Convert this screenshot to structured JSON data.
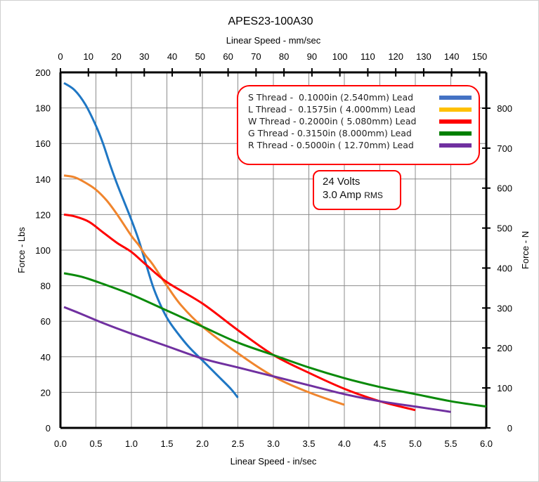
{
  "chart_data": {
    "type": "line",
    "title": "APES23-100A30",
    "xlabel": "Linear Speed - in/sec",
    "x2label": "Linear Speed - mm/sec",
    "ylabel": "Force - Lbs",
    "y2label": "Force - N",
    "xlim": [
      0,
      6.0
    ],
    "ylim": [
      0,
      200
    ],
    "x2lim": [
      0,
      152.4
    ],
    "y2lim": [
      0,
      889.6
    ],
    "xticks": [
      "0.0",
      "0.5",
      "1.0",
      "1.5",
      "2.0",
      "2.5",
      "3.0",
      "3.5",
      "4.0",
      "4.5",
      "5.0",
      "5.5",
      "6.0"
    ],
    "yticks": [
      "0",
      "20",
      "40",
      "60",
      "80",
      "100",
      "120",
      "140",
      "160",
      "180",
      "200"
    ],
    "x2ticks": [
      "0",
      "10",
      "20",
      "30",
      "40",
      "50",
      "60",
      "70",
      "80",
      "90",
      "100",
      "110",
      "120",
      "130",
      "140",
      "150"
    ],
    "y2ticks": [
      "0",
      "100",
      "200",
      "300",
      "400",
      "500",
      "600",
      "700",
      "800"
    ],
    "grid": true,
    "legend_position": "top-right",
    "series": [
      {
        "name": "S Thread -  0.1000in (2.540mm) Lead",
        "color": "#1f77c4",
        "x": [
          0.05,
          0.2,
          0.35,
          0.5,
          0.6,
          0.7,
          0.8,
          0.9,
          1.0,
          1.1,
          1.2,
          1.3,
          1.4,
          1.5,
          1.6,
          1.8,
          2.0,
          2.2,
          2.4,
          2.5
        ],
        "y": [
          194,
          190,
          182,
          170,
          160,
          148,
          137,
          127,
          117,
          106,
          93,
          80,
          70,
          62,
          56,
          46,
          38,
          30,
          22,
          17
        ]
      },
      {
        "name": "L Thread -  0.1575in ( 4.000mm) Lead",
        "color": "#f0852d",
        "x": [
          0.05,
          0.2,
          0.35,
          0.5,
          0.65,
          0.8,
          1.0,
          1.1,
          1.2,
          1.3,
          1.5,
          1.7,
          2.0,
          2.5,
          3.0,
          3.5,
          4.0
        ],
        "y": [
          142,
          141,
          138,
          134,
          128,
          120,
          108,
          103,
          97,
          92,
          80,
          69,
          57,
          42,
          29,
          20,
          13
        ]
      },
      {
        "name": "W Thread - 0.2000in ( 5.080mm) Lead",
        "color": "#ff0000",
        "x": [
          0.05,
          0.2,
          0.4,
          0.6,
          0.8,
          1.0,
          1.2,
          1.5,
          2.0,
          2.5,
          3.0,
          3.5,
          4.0,
          4.5,
          5.0
        ],
        "y": [
          120,
          119,
          116,
          110,
          104,
          99,
          92,
          82,
          70,
          55,
          41,
          31,
          22,
          15,
          10
        ]
      },
      {
        "name": "G Thread - 0.3150in (8.000mm) Lead",
        "color": "#0a8a0a",
        "x": [
          0.05,
          0.3,
          0.6,
          1.0,
          1.5,
          2.0,
          2.5,
          3.0,
          3.5,
          4.0,
          4.5,
          5.0,
          5.5,
          6.0
        ],
        "y": [
          87,
          85,
          81,
          75,
          66,
          57,
          48,
          41,
          34,
          28,
          23,
          19,
          15,
          12
        ]
      },
      {
        "name": "R Thread - 0.5000in ( 12.70mm) Lead",
        "color": "#7030a0",
        "x": [
          0.05,
          0.3,
          0.6,
          1.0,
          1.5,
          2.0,
          2.5,
          3.0,
          3.5,
          4.0,
          4.5,
          5.0,
          5.5
        ],
        "y": [
          68,
          64,
          59,
          53,
          46,
          39,
          34,
          29,
          24,
          19,
          15,
          12,
          9
        ]
      }
    ],
    "legend_swatch_colors": [
      "#4472c4",
      "#ffc000",
      "#ff0000",
      "#008000",
      "#7030a0"
    ],
    "annotation": {
      "line1": "24 Volts",
      "line2_main": "3.0 Amp ",
      "line2_small": "RMS"
    }
  }
}
